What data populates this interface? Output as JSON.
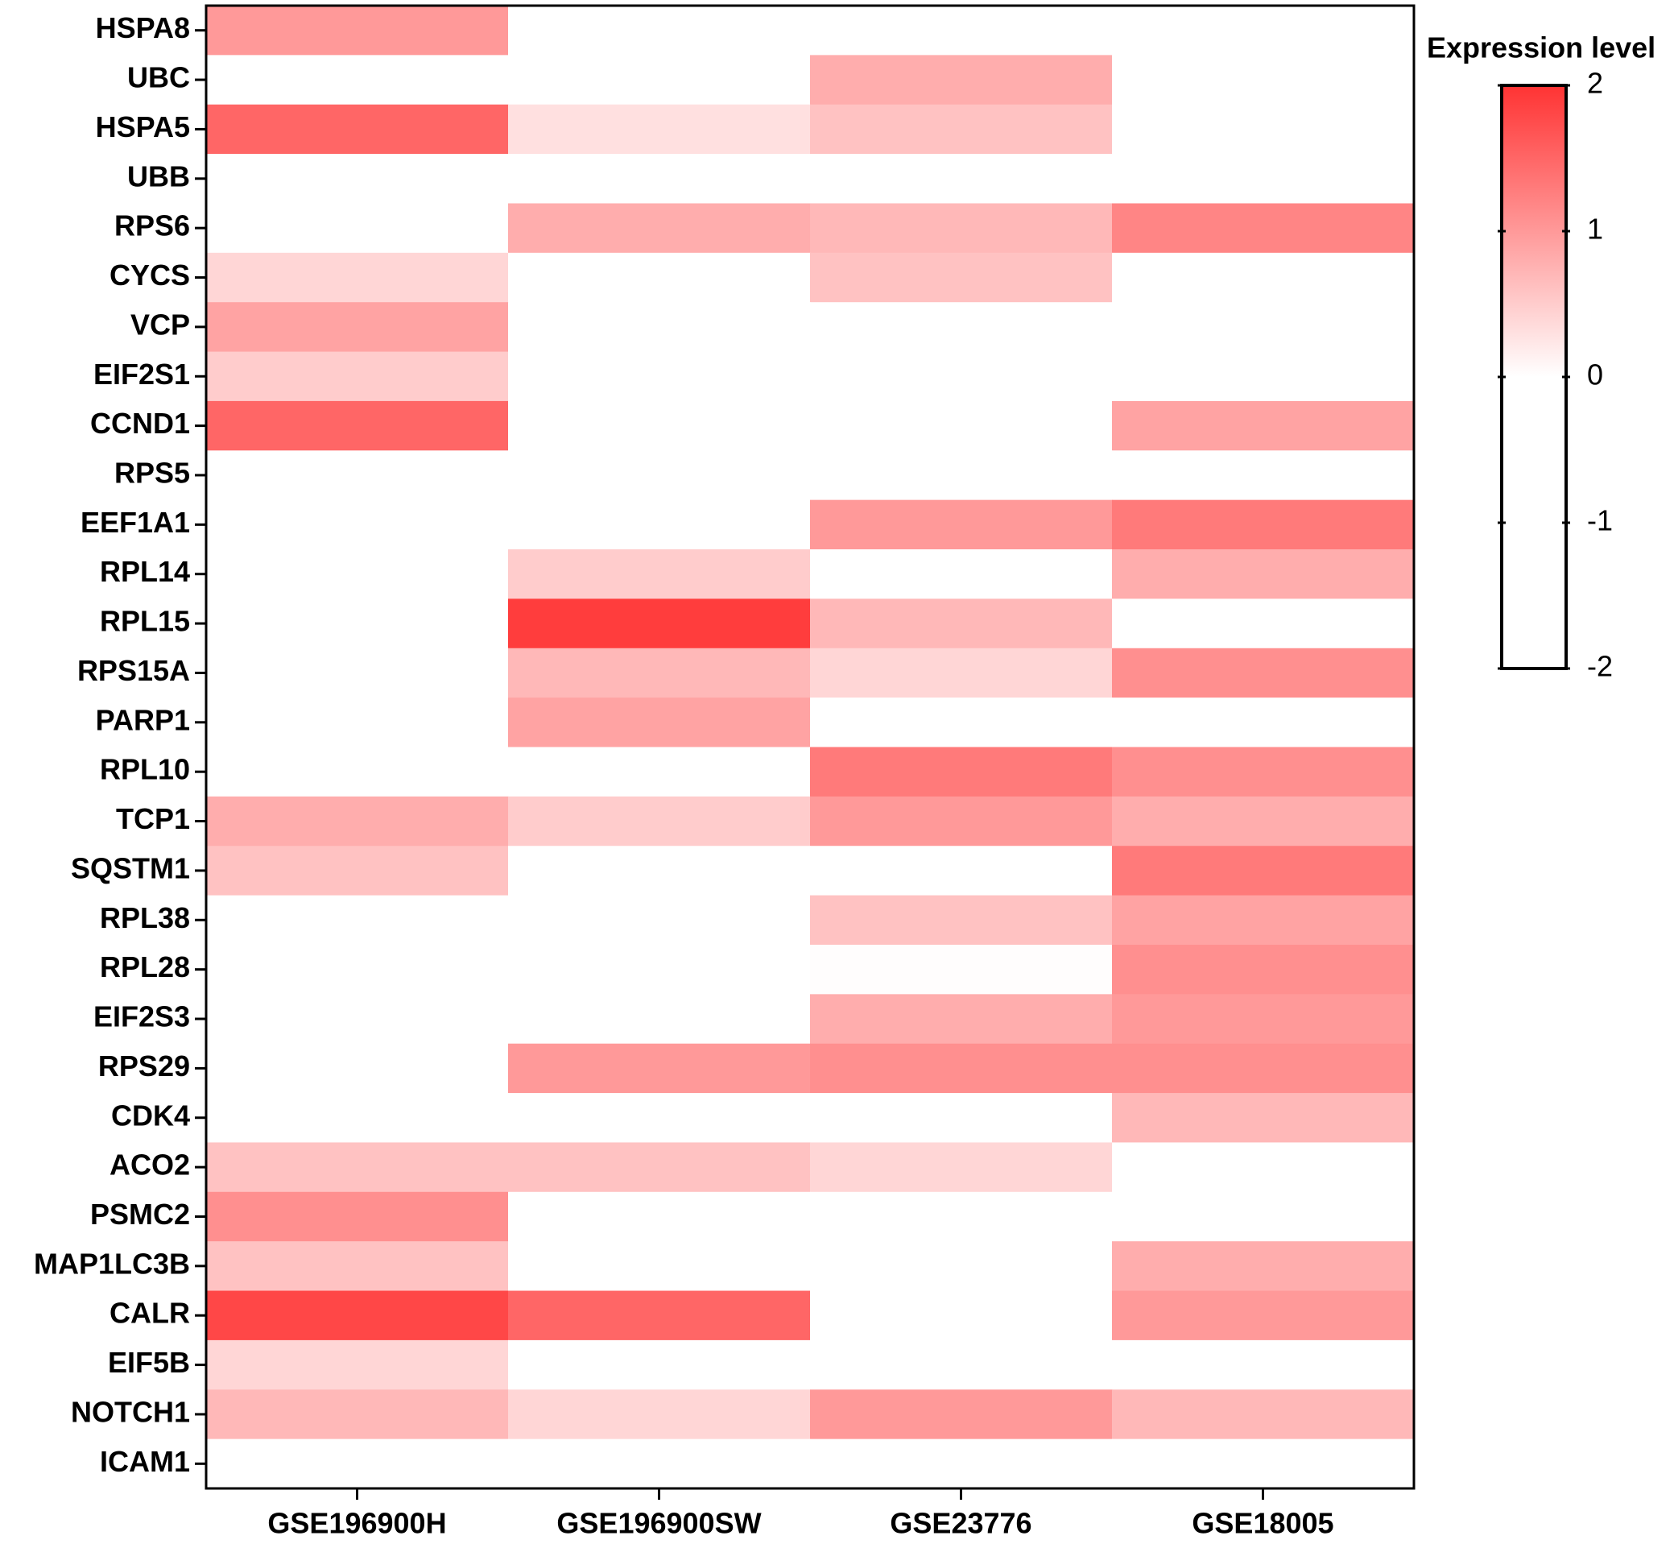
{
  "chart_data": {
    "type": "heatmap",
    "legend_title": "Expression level",
    "rows": [
      "HSPA8",
      "UBC",
      "HSPA5",
      "UBB",
      "RPS6",
      "CYCS",
      "VCP",
      "EIF2S1",
      "CCND1",
      "RPS5",
      "EEF1A1",
      "RPL14",
      "RPL15",
      "RPS15A",
      "PARP1",
      "RPL10",
      "TCP1",
      "SQSTM1",
      "RPL38",
      "RPL28",
      "EIF2S3",
      "RPS29",
      "CDK4",
      "ACO2",
      "PSMC2",
      "MAP1LC3B",
      "CALR",
      "EIF5B",
      "NOTCH1",
      "ICAM1"
    ],
    "columns": [
      "GSE196900H",
      "GSE196900SW",
      "GSE23776",
      "GSE18005"
    ],
    "values": [
      [
        1.0,
        0,
        0,
        0
      ],
      [
        0,
        0,
        0.8,
        0
      ],
      [
        1.5,
        0.3,
        0.6,
        0
      ],
      [
        0,
        0,
        0,
        0
      ],
      [
        0,
        0.8,
        0.7,
        1.2
      ],
      [
        0.4,
        0,
        0.6,
        0
      ],
      [
        0.9,
        0,
        0,
        0
      ],
      [
        0.5,
        0,
        0,
        0
      ],
      [
        1.5,
        0,
        0,
        0.9
      ],
      [
        0,
        0,
        0,
        0
      ],
      [
        0,
        0,
        1.0,
        1.3
      ],
      [
        0,
        0.5,
        0,
        0.8
      ],
      [
        0,
        1.9,
        0.7,
        0
      ],
      [
        0,
        0.7,
        0.4,
        1.1
      ],
      [
        0,
        0.9,
        0,
        0
      ],
      [
        0,
        0,
        1.3,
        1.1
      ],
      [
        0.8,
        0.5,
        1.0,
        0.8
      ],
      [
        0.6,
        0,
        0,
        1.3
      ],
      [
        0,
        0,
        0.6,
        0.9
      ],
      [
        0,
        0,
        0.02,
        1.1
      ],
      [
        0,
        0,
        0.8,
        1.0
      ],
      [
        0,
        1.0,
        1.1,
        1.1
      ],
      [
        0,
        0,
        0,
        0.7
      ],
      [
        0.6,
        0.6,
        0.4,
        0
      ],
      [
        1.1,
        0,
        0,
        0
      ],
      [
        0.6,
        0,
        0,
        0.8
      ],
      [
        1.8,
        1.5,
        0,
        1.0
      ],
      [
        0.4,
        0,
        0,
        0
      ],
      [
        0.7,
        0.4,
        1.0,
        0.7
      ],
      [
        0,
        0,
        0,
        0
      ]
    ],
    "zlim": [
      -2,
      2
    ],
    "zticks": [
      2,
      1,
      0,
      -1,
      -2
    ],
    "colorscale": [
      {
        "value": -2,
        "color": "#ffffff"
      },
      {
        "value": 0,
        "color": "#ffffff"
      },
      {
        "value": 2,
        "color": "#ff3333"
      }
    ]
  }
}
